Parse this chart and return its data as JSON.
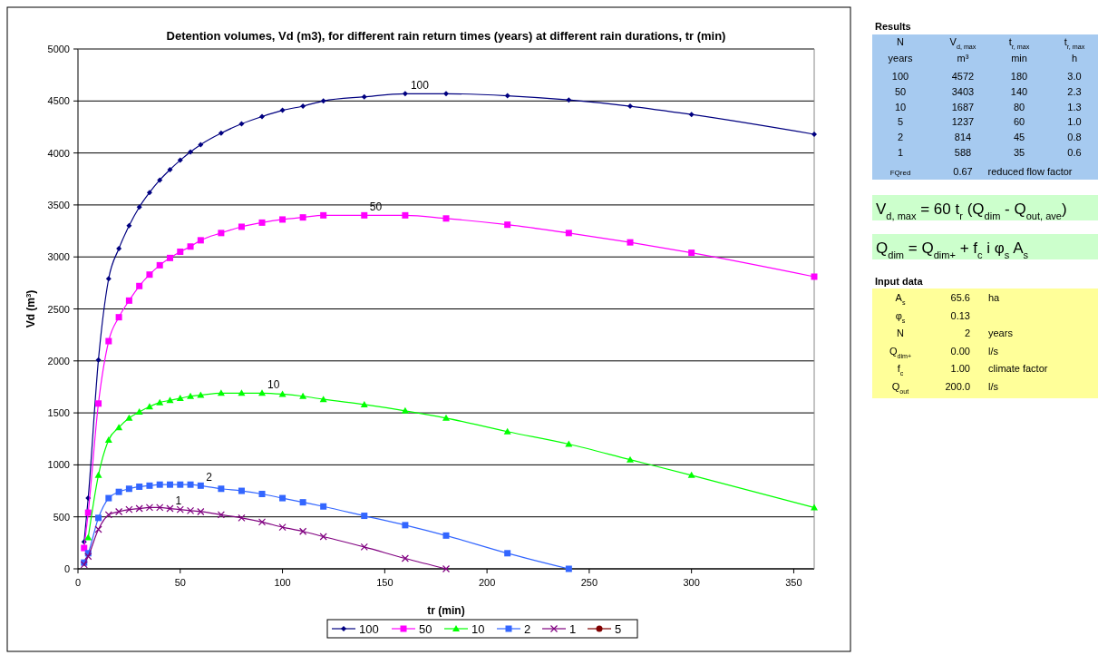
{
  "chart_data": [
    {
      "type": "line",
      "title": "Detention volumes, Vd (m3), for different rain return times (years) at different rain durations, tr (min)",
      "xlabel": "tr (min)",
      "ylabel": "Vd (m$^{3}$)",
      "xlim": [
        0,
        360
      ],
      "xticks": [
        0,
        50,
        100,
        150,
        200,
        250,
        300,
        350
      ],
      "ylim": [
        0,
        5000
      ],
      "yticks": [
        0,
        500,
        1000,
        1500,
        2000,
        2500,
        3000,
        3500,
        4000,
        4500,
        5000
      ],
      "grid": "y",
      "legend": "bottom",
      "line_style": "solid",
      "series": [
        {
          "name": "100",
          "color": "#000080",
          "marker": "diamond",
          "x": [
            3,
            5,
            10,
            15,
            20,
            25,
            30,
            35,
            40,
            45,
            50,
            55,
            60,
            70,
            80,
            90,
            100,
            110,
            120,
            140,
            160,
            180,
            210,
            240,
            270,
            300,
            360
          ],
          "values": [
            260,
            680,
            2010,
            2790,
            3080,
            3300,
            3480,
            3620,
            3740,
            3840,
            3930,
            4010,
            4080,
            4190,
            4280,
            4350,
            4410,
            4450,
            4500,
            4540,
            4570,
            4570,
            4550,
            4510,
            4450,
            4370,
            4180
          ]
        },
        {
          "name": "50",
          "color": "#ff00ff",
          "marker": "square",
          "x": [
            3,
            5,
            10,
            15,
            20,
            25,
            30,
            35,
            40,
            45,
            50,
            55,
            60,
            70,
            80,
            90,
            100,
            110,
            120,
            140,
            160,
            180,
            210,
            240,
            270,
            300,
            360
          ],
          "values": [
            200,
            540,
            1590,
            2190,
            2420,
            2580,
            2720,
            2830,
            2920,
            2990,
            3050,
            3100,
            3160,
            3230,
            3290,
            3330,
            3360,
            3380,
            3400,
            3400,
            3400,
            3370,
            3310,
            3230,
            3140,
            3040,
            2810
          ]
        },
        {
          "name": "10",
          "color": "#00ff00",
          "marker": "triangle",
          "x": [
            5,
            10,
            15,
            20,
            25,
            30,
            35,
            40,
            45,
            50,
            55,
            60,
            70,
            80,
            90,
            100,
            110,
            120,
            140,
            160,
            180,
            210,
            240,
            270,
            300,
            360
          ],
          "values": [
            300,
            900,
            1240,
            1360,
            1450,
            1510,
            1560,
            1600,
            1620,
            1640,
            1660,
            1670,
            1690,
            1690,
            1690,
            1680,
            1660,
            1630,
            1580,
            1520,
            1450,
            1320,
            1200,
            1050,
            900,
            590
          ]
        },
        {
          "name": "2",
          "color": "#3366ff",
          "marker": "square",
          "x": [
            3,
            5,
            10,
            15,
            20,
            25,
            30,
            35,
            40,
            45,
            50,
            55,
            60,
            70,
            80,
            90,
            100,
            110,
            120,
            140,
            160,
            180,
            210,
            240
          ],
          "values": [
            60,
            150,
            490,
            680,
            740,
            770,
            790,
            800,
            810,
            810,
            810,
            810,
            800,
            770,
            750,
            720,
            680,
            640,
            600,
            510,
            420,
            320,
            150,
            0
          ]
        },
        {
          "name": "1",
          "color": "#800080",
          "marker": "cross",
          "x": [
            3,
            5,
            10,
            15,
            20,
            25,
            30,
            35,
            40,
            45,
            50,
            55,
            60,
            70,
            80,
            90,
            100,
            110,
            120,
            140,
            160,
            180
          ],
          "values": [
            40,
            120,
            380,
            520,
            550,
            570,
            580,
            590,
            590,
            580,
            570,
            560,
            550,
            520,
            490,
            450,
            400,
            360,
            310,
            210,
            100,
            0
          ]
        },
        {
          "name": "5",
          "color": "#800000",
          "marker": "circle"
        }
      ],
      "annotations": [
        {
          "text": "100",
          "x": 160,
          "y": 4570
        },
        {
          "text": "50",
          "x": 140,
          "y": 3400
        },
        {
          "text": "10",
          "x": 90,
          "y": 1690
        },
        {
          "text": "2",
          "x": 60,
          "y": 800
        },
        {
          "text": "1",
          "x": 45,
          "y": 580
        }
      ]
    },
    {
      "type": "other",
      "title": "Results",
      "annotations": [
        "N",
        "V$_{d, max}$",
        "t$_{r, max}$",
        "t$_{r, max}$",
        "years",
        "m³",
        "min",
        "h",
        "100",
        "4572",
        "180",
        "3.0",
        "50",
        "3403",
        "140",
        "2.3",
        "10",
        "1687",
        "80",
        "1.3",
        "5",
        "1237",
        "60",
        "1.0",
        "2",
        "814",
        "45",
        "0.8",
        "1",
        "588",
        "35",
        "0.6",
        "FQred",
        "0.67",
        "reduced flow factor"
      ]
    },
    {
      "type": "other",
      "annotations": [
        "V$_{d, max}$ = 60 t$_{r}$ (Q$_{dim}$ - Q$_{out, ave}$)",
        "Q$_{dim}$ = Q$_{dim+}$ + f$_{c}$ i φ$_{s}$ A$_{s}$"
      ]
    },
    {
      "type": "other",
      "title": "Input data",
      "annotations": [
        "A$_{s}$",
        "65.6",
        "ha",
        "φ$_{s}$",
        "0.13",
        "N",
        "2",
        "years",
        "Q$_{dim+}$",
        "0.00",
        "l/s",
        "f$_{c}$",
        "1.00",
        "climate factor",
        "Q$_{out}$",
        "200.0",
        "l/s"
      ]
    }
  ]
}
